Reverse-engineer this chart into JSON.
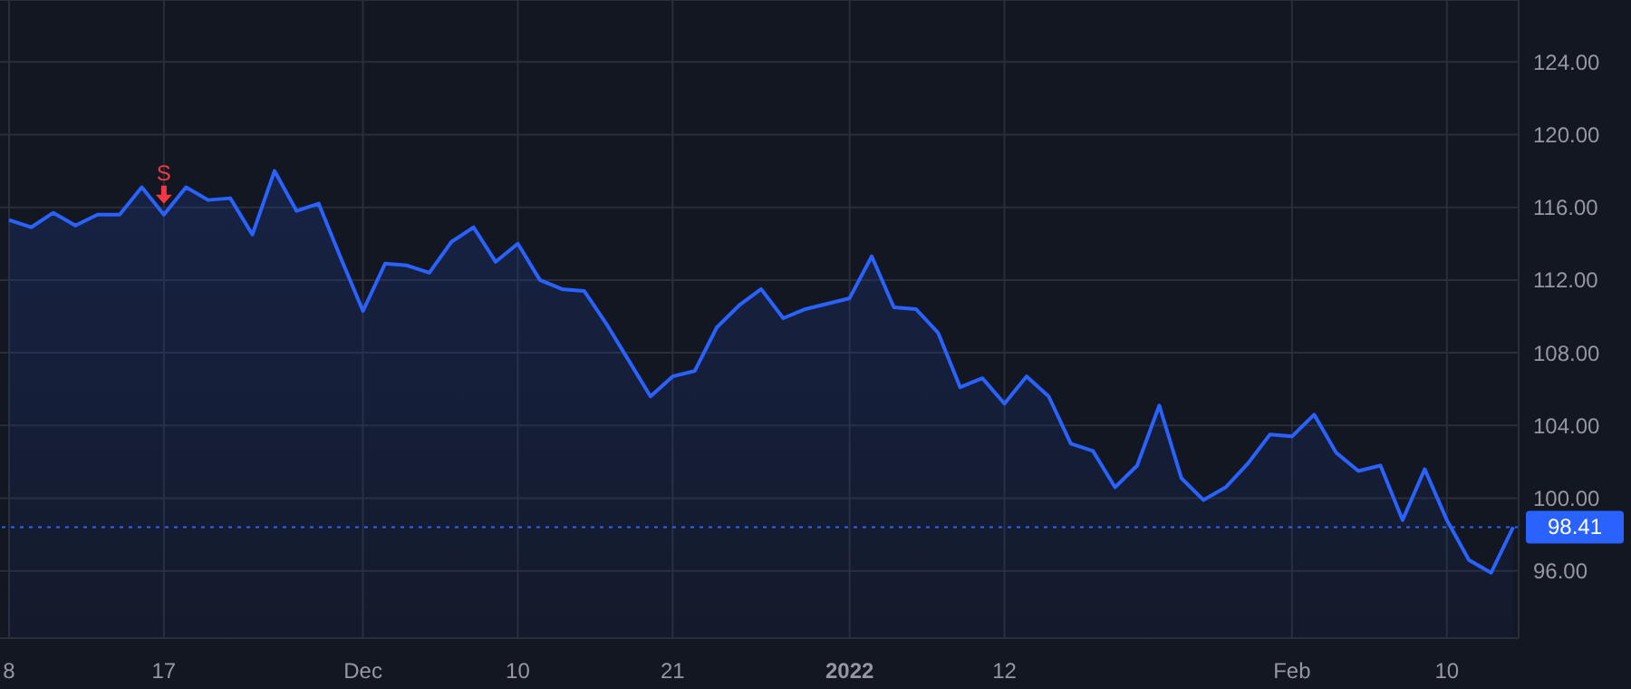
{
  "chart_data": {
    "type": "area",
    "categories": [
      "8",
      null,
      null,
      null,
      null,
      null,
      null,
      "17",
      null,
      null,
      null,
      null,
      null,
      null,
      null,
      null,
      "Dec",
      null,
      null,
      null,
      null,
      null,
      null,
      "10",
      null,
      null,
      null,
      null,
      null,
      null,
      "21",
      null,
      null,
      null,
      null,
      null,
      null,
      null,
      "2022",
      null,
      null,
      null,
      null,
      null,
      null,
      "12",
      null,
      null,
      null,
      null,
      null,
      null,
      null,
      null,
      null,
      null,
      null,
      null,
      "Feb",
      null,
      null,
      null,
      null,
      null,
      null,
      "10",
      null,
      null,
      null
    ],
    "series": [
      {
        "color": "#2962ff",
        "values": [
          115.3,
          114.9,
          115.7,
          115.0,
          115.6,
          115.6,
          117.1,
          115.6,
          117.1,
          116.4,
          116.5,
          114.5,
          118.0,
          115.8,
          116.2,
          113.2,
          110.3,
          112.9,
          112.8,
          112.4,
          114.1,
          114.9,
          113.0,
          114.0,
          112.0,
          111.5,
          111.4,
          109.6,
          107.6,
          105.6,
          106.7,
          107.0,
          109.4,
          110.6,
          111.5,
          109.9,
          110.4,
          110.7,
          111.0,
          113.3,
          110.5,
          110.4,
          109.1,
          106.1,
          106.6,
          105.2,
          106.7,
          105.6,
          103.0,
          102.6,
          100.6,
          101.8,
          105.1,
          101.1,
          99.9,
          100.6,
          101.9,
          103.5,
          103.4,
          104.6,
          102.5,
          101.5,
          101.8,
          98.8,
          101.6,
          98.8,
          96.6,
          95.9,
          98.41
        ]
      }
    ],
    "ylim": [
      92.3,
      127.4
    ],
    "yticks": [
      {
        "value": 96,
        "label": "96.00"
      },
      {
        "value": 100,
        "label": "100.00"
      },
      {
        "value": 104,
        "label": "104.00"
      },
      {
        "value": 108,
        "label": "108.00"
      },
      {
        "value": 112,
        "label": "112.00"
      },
      {
        "value": 116,
        "label": "116.00"
      },
      {
        "value": 120,
        "label": "120.00"
      },
      {
        "value": 124,
        "label": "124.00"
      }
    ],
    "grid": true,
    "ref_lines": [
      {
        "axis": "y",
        "value": 98.41,
        "label": "98.41",
        "color": "#2962ff",
        "line_style": "dotted"
      }
    ],
    "annotations": [
      {
        "text": "S",
        "x": "17",
        "y": 115.6
      }
    ]
  }
}
